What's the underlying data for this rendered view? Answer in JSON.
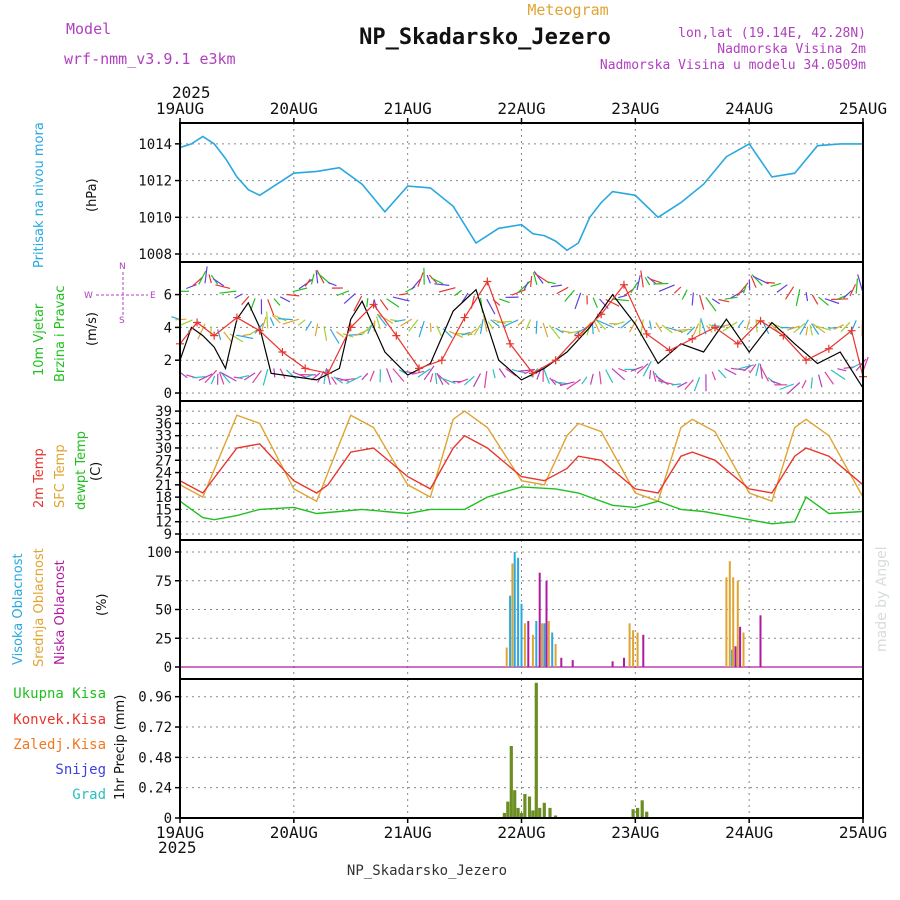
{
  "header": {
    "title": "NP_Skadarsko_Jezero",
    "subtitle": "Meteogram",
    "model_label": "Model",
    "model_name": "wrf-nmm_v3.9.1 e3km",
    "coords": "lon,lat (19.14E, 42.28N)",
    "elevation": "Nadmorska Visina 2m",
    "model_elevation": "Nadmorska Visina u modelu 34.0509m",
    "year_top": "2025",
    "year_bottom": "2025",
    "footer": "NP_Skadarsko_Jezero",
    "credit": "made by Angel"
  },
  "colors": {
    "pressure": "#29a8e0",
    "wind_speed": "#000000",
    "wind_gust": "#e8352e",
    "t2m": "#e8352e",
    "tsfc": "#e0a431",
    "dewpoint": "#20c020",
    "cloud_high": "#29a8e0",
    "cloud_mid": "#e0a431",
    "cloud_low": "#b01aa0",
    "precip": "#6b8e23",
    "label_green": "#20c020",
    "label_red": "#e8352e",
    "label_orange": "#f07820",
    "label_blue": "#4040e0",
    "label_cyan": "#29c0c0",
    "header_purple": "#b040c0",
    "header_orange": "#e0a431"
  },
  "chart_data": [
    {
      "type": "line",
      "panel": "pressure",
      "ylabel_side": "Pritisak na nivou mora",
      "unit": "(hPa)",
      "x_categories": [
        "19AUG",
        "20AUG",
        "21AUG",
        "22AUG",
        "23AUG",
        "24AUG",
        "25AUG"
      ],
      "yticks": [
        "1008",
        "1010",
        "1012",
        "1014"
      ],
      "ylim": [
        1008,
        1014.7
      ],
      "x": [
        0,
        0.1,
        0.2,
        0.3,
        0.4,
        0.5,
        0.6,
        0.7,
        0.8,
        1.0,
        1.2,
        1.4,
        1.6,
        1.8,
        2.0,
        2.2,
        2.4,
        2.6,
        2.8,
        3.0,
        3.1,
        3.2,
        3.3,
        3.4,
        3.5,
        3.6,
        3.7,
        3.8,
        4.0,
        4.2,
        4.4,
        4.6,
        4.8,
        5.0,
        5.2,
        5.4,
        5.6,
        5.8,
        6.0
      ],
      "values": [
        1013.8,
        1014.0,
        1014.4,
        1014.0,
        1013.2,
        1012.2,
        1011.5,
        1011.2,
        1011.6,
        1012.4,
        1012.5,
        1012.7,
        1011.8,
        1010.3,
        1011.7,
        1011.6,
        1010.6,
        1008.6,
        1009.4,
        1009.6,
        1009.1,
        1009.0,
        1008.7,
        1008.2,
        1008.6,
        1010.0,
        1010.8,
        1011.4,
        1011.2,
        1010.0,
        1010.8,
        1011.8,
        1013.3,
        1014.0,
        1012.2,
        1012.4,
        1013.9,
        1014.0,
        1014.0
      ]
    },
    {
      "type": "line",
      "panel": "wind",
      "ylabel_side": "10m Vjetar",
      "ylabel_side2": "Brzina i Pravac",
      "unit": "(m/s)",
      "compass": {
        "west": "W",
        "east": "E",
        "north": "N",
        "south": "S"
      },
      "yticks": [
        "0",
        "2",
        "4",
        "6"
      ],
      "ylim": [
        0,
        7.5
      ],
      "series": [
        {
          "name": "Wind speed",
          "x": [
            0,
            0.1,
            0.2,
            0.3,
            0.4,
            0.5,
            0.6,
            0.7,
            0.8,
            1.0,
            1.2,
            1.4,
            1.5,
            1.6,
            1.8,
            2.0,
            2.2,
            2.4,
            2.6,
            2.8,
            3.0,
            3.2,
            3.4,
            3.6,
            3.8,
            4.0,
            4.2,
            4.4,
            4.6,
            4.8,
            5.0,
            5.2,
            5.4,
            5.6,
            5.8,
            6.0
          ],
          "values": [
            2.0,
            4.0,
            3.5,
            2.8,
            1.5,
            4.5,
            5.5,
            4.0,
            1.2,
            1.0,
            0.8,
            1.5,
            4.5,
            5.6,
            2.5,
            1.1,
            1.8,
            5.0,
            6.3,
            2.0,
            0.8,
            1.5,
            2.5,
            4.0,
            6.0,
            4.2,
            1.8,
            3.0,
            2.5,
            4.5,
            2.5,
            4.3,
            3.0,
            1.8,
            2.5,
            0.3
          ]
        },
        {
          "name": "Wind gust",
          "x": [
            0,
            0.15,
            0.3,
            0.5,
            0.7,
            0.9,
            1.1,
            1.3,
            1.5,
            1.7,
            1.9,
            2.1,
            2.3,
            2.5,
            2.7,
            2.9,
            3.1,
            3.3,
            3.5,
            3.7,
            3.9,
            4.1,
            4.3,
            4.5,
            4.7,
            4.9,
            5.1,
            5.3,
            5.5,
            5.7,
            5.9,
            6.0
          ],
          "values": [
            3.0,
            4.3,
            3.5,
            4.6,
            3.8,
            2.5,
            1.5,
            1.2,
            4.0,
            5.4,
            3.5,
            1.5,
            2.0,
            4.6,
            6.8,
            3.0,
            1.2,
            2.0,
            3.5,
            4.8,
            6.6,
            3.6,
            2.6,
            3.3,
            4.0,
            3.0,
            4.4,
            3.5,
            2.0,
            2.7,
            3.8,
            1.0
          ]
        }
      ]
    },
    {
      "type": "line",
      "panel": "temperature",
      "ylabel_side": "2m Temp",
      "ylabel_side2": "SFC Temp",
      "ylabel_side3": "dewpt Temp",
      "unit": "(C)",
      "yticks": [
        "9",
        "12",
        "15",
        "18",
        "21",
        "24",
        "27",
        "30",
        "33",
        "36",
        "39"
      ],
      "ylim": [
        9,
        40
      ],
      "series": [
        {
          "name": "2m Temp",
          "x": [
            0,
            0.2,
            0.5,
            0.7,
            1.0,
            1.2,
            1.3,
            1.5,
            1.7,
            2.0,
            2.2,
            2.4,
            2.5,
            2.7,
            3.0,
            3.2,
            3.4,
            3.5,
            3.7,
            4.0,
            4.2,
            4.4,
            4.5,
            4.7,
            5.0,
            5.2,
            5.4,
            5.5,
            5.7,
            6.0
          ],
          "values": [
            22,
            19,
            30,
            31,
            22,
            19,
            21,
            29,
            30,
            23,
            20,
            30,
            33,
            30,
            23,
            22,
            25,
            28,
            27,
            20,
            19,
            28,
            29,
            27,
            20,
            19,
            28,
            30,
            28,
            21
          ]
        },
        {
          "name": "SFC Temp",
          "x": [
            0,
            0.2,
            0.5,
            0.7,
            1.0,
            1.2,
            1.3,
            1.5,
            1.7,
            2.0,
            2.2,
            2.4,
            2.5,
            2.7,
            3.0,
            3.2,
            3.4,
            3.5,
            3.7,
            4.0,
            4.2,
            4.4,
            4.5,
            4.7,
            5.0,
            5.2,
            5.4,
            5.5,
            5.7,
            6.0
          ],
          "values": [
            21,
            18,
            38,
            36,
            20,
            17,
            24,
            38,
            35,
            21,
            18,
            37,
            39,
            35,
            22,
            21,
            33,
            36,
            34,
            19,
            17,
            35,
            37,
            34,
            19,
            17,
            35,
            37,
            33,
            18
          ]
        },
        {
          "name": "dewpt Temp",
          "x": [
            0,
            0.1,
            0.2,
            0.3,
            0.5,
            0.7,
            1.0,
            1.2,
            1.4,
            1.6,
            1.8,
            2.0,
            2.2,
            2.5,
            2.7,
            3.0,
            3.3,
            3.5,
            3.8,
            4.0,
            4.2,
            4.4,
            4.6,
            4.8,
            5.0,
            5.2,
            5.4,
            5.5,
            5.7,
            6.0
          ],
          "values": [
            17,
            15,
            13,
            12.5,
            13.5,
            15,
            15.5,
            14,
            14.5,
            15,
            14.5,
            14,
            15,
            15,
            18,
            20.5,
            20,
            19,
            16,
            15.5,
            17,
            15,
            14.5,
            13.5,
            12.5,
            11.5,
            12,
            18,
            14,
            14.5
          ]
        }
      ]
    },
    {
      "type": "bar",
      "panel": "clouds",
      "ylabel_side": "Visoka Oblacnost",
      "ylabel_side2": "Srednja Oblacnost",
      "ylabel_side3": "Niska Oblacnost",
      "unit": "(%)",
      "yticks": [
        "0",
        "25",
        "50",
        "75",
        "100"
      ],
      "ylim": [
        0,
        100
      ],
      "series": [
        {
          "name": "Visoka",
          "x": [
            2.9,
            2.94,
            2.97,
            3.0,
            3.13,
            3.2,
            3.27,
            4.85
          ],
          "values": [
            62,
            100,
            95,
            55,
            40,
            38,
            30,
            15
          ]
        },
        {
          "name": "Srednja",
          "x": [
            2.87,
            2.92,
            3.03,
            3.1,
            3.18,
            3.24,
            3.3,
            3.95,
            3.98,
            4.02,
            4.8,
            4.83,
            4.86,
            4.9,
            4.95
          ],
          "values": [
            17,
            90,
            38,
            28,
            38,
            40,
            20,
            38,
            32,
            30,
            78,
            92,
            78,
            75,
            30
          ]
        },
        {
          "name": "Niska",
          "x": [
            3.06,
            3.16,
            3.22,
            3.35,
            3.45,
            3.8,
            3.9,
            4.07,
            4.88,
            4.92,
            5.1
          ],
          "values": [
            40,
            82,
            75,
            8,
            6,
            5,
            8,
            28,
            18,
            35,
            45
          ]
        }
      ]
    },
    {
      "type": "bar",
      "panel": "precip",
      "legend": [
        "Ukupna Kisa",
        "Konvek.Kisa",
        "Zaledj.Kisa",
        "Snijeg",
        "Grad"
      ],
      "unit": "1hr Precip (mm)",
      "yticks": [
        "0",
        "0.24",
        "0.48",
        "0.72",
        "0.96"
      ],
      "ylim": [
        0,
        1.1
      ],
      "x": [
        2.85,
        2.88,
        2.91,
        2.94,
        2.97,
        3.0,
        3.03,
        3.07,
        3.1,
        3.13,
        3.16,
        3.2,
        3.25,
        3.3,
        3.98,
        4.02,
        4.06,
        4.1
      ],
      "values": [
        0.04,
        0.13,
        0.57,
        0.22,
        0.08,
        0.04,
        0.19,
        0.17,
        0.06,
        1.07,
        0.08,
        0.12,
        0.08,
        0.02,
        0.07,
        0.08,
        0.14,
        0.05
      ]
    }
  ]
}
